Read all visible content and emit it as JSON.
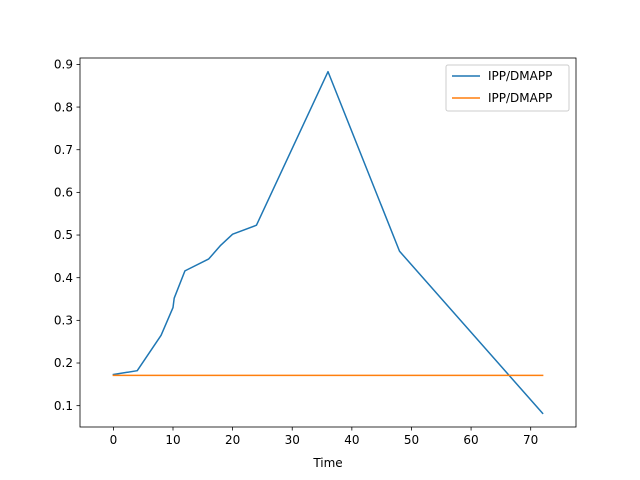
{
  "chart_data": {
    "type": "line",
    "title": "",
    "xlabel": "Time",
    "ylabel": "",
    "xlim": [
      -5.6,
      77.6
    ],
    "ylim": [
      0.05,
      0.915
    ],
    "x_ticks": [
      0,
      10,
      20,
      30,
      40,
      50,
      60,
      70
    ],
    "y_ticks": [
      0.1,
      0.2,
      0.3,
      0.4,
      0.5,
      0.6,
      0.7,
      0.8,
      0.9
    ],
    "grid": false,
    "legend_position": "top-right",
    "series": [
      {
        "name": "IPP/DMAPP",
        "color": "#1f77b4",
        "x": [
          0,
          4,
          8,
          10,
          10.2,
          12,
          16,
          18,
          20,
          24,
          36,
          48,
          72
        ],
        "y": [
          0.173,
          0.182,
          0.265,
          0.33,
          0.352,
          0.416,
          0.444,
          0.476,
          0.502,
          0.523,
          0.883,
          0.462,
          0.082
        ]
      },
      {
        "name": "IPP/DMAPP",
        "color": "#ff7f0e",
        "x": [
          0,
          72
        ],
        "y": [
          0.171,
          0.171
        ]
      }
    ]
  }
}
